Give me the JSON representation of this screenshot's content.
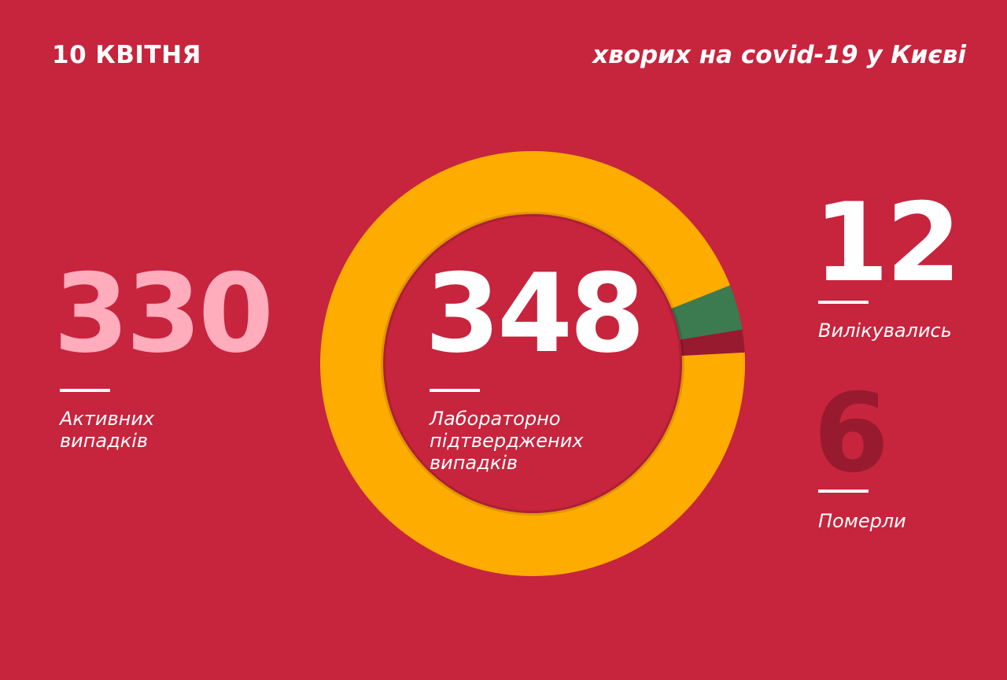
{
  "header": {
    "date": "10 КВІТНЯ",
    "headline": "хворих на covid-19 у Києві"
  },
  "summary": {
    "active": {
      "value": "330",
      "label_lines": [
        "Активних",
        "випадків"
      ]
    },
    "confirmed": {
      "value": "348",
      "label_lines": [
        "Лабораторно",
        "підтверджених",
        "випадків"
      ]
    },
    "recovered": {
      "value": "12",
      "label": "Вилікувались"
    },
    "died": {
      "value": "6",
      "label": "Померли"
    }
  },
  "colors": {
    "background": "#c7243d",
    "active": "#ffac00",
    "recovered": "#3c7a50",
    "died": "#981a2f",
    "active_number": "#ffacbc",
    "white": "#ffffff"
  },
  "chart_data": {
    "type": "pie",
    "donut": true,
    "categories": [
      "Активних випадків",
      "Вилікувались",
      "Померли"
    ],
    "values": [
      330,
      12,
      6
    ],
    "title": "",
    "legend": "none"
  }
}
